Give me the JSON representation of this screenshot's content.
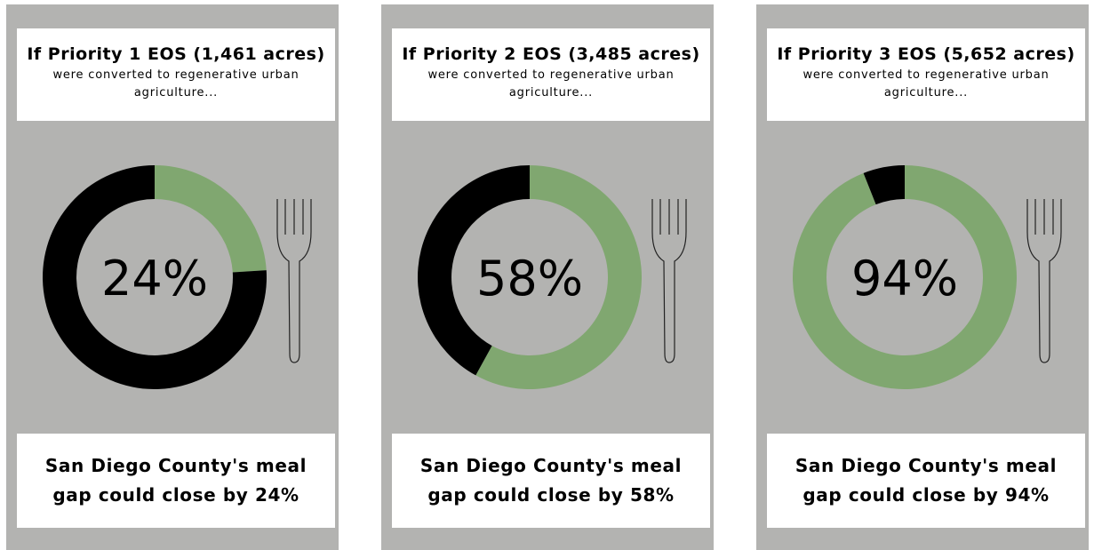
{
  "chart_data": [
    {
      "type": "donut",
      "title": "If Priority 1 EOS (1,461 acres)",
      "subtitle": "were converted to regenerative urban agriculture...",
      "values": [
        24,
        76
      ],
      "value_labels": [
        "24%",
        null
      ],
      "colors": [
        "#80a770",
        "#000000"
      ],
      "footer": "San Diego County's meal gap could close by 24%"
    },
    {
      "type": "donut",
      "title": "If Priority 2 EOS (3,485 acres)",
      "subtitle": "were converted to regenerative urban agriculture...",
      "values": [
        58,
        42
      ],
      "value_labels": [
        "58%",
        null
      ],
      "colors": [
        "#80a770",
        "#000000"
      ],
      "footer": "San Diego County's meal gap could close by 58%"
    },
    {
      "type": "donut",
      "title": "If Priority 3 EOS (5,652 acres)",
      "subtitle": "were converted to regenerative urban agriculture...",
      "values": [
        94,
        6
      ],
      "value_labels": [
        "94%",
        null
      ],
      "colors": [
        "#80a770",
        "#000000"
      ],
      "footer": "San Diego County's meal gap could close by 94%"
    }
  ]
}
